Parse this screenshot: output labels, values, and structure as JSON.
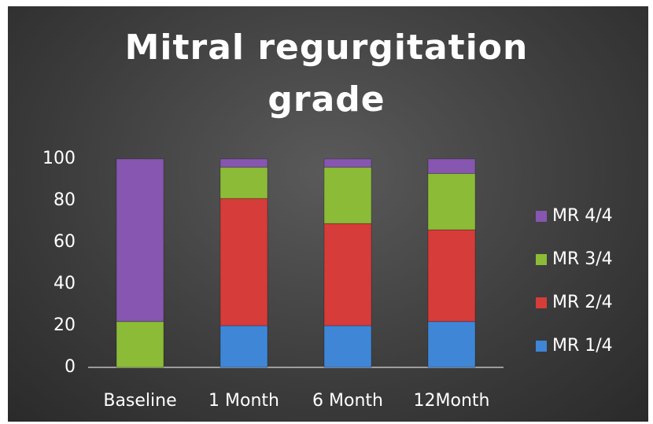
{
  "chart_data": {
    "type": "stacked_bar",
    "title": "Mitral regurgitation grade",
    "categories": [
      "Baseline",
      "1 Month",
      "6 Month",
      "12Month"
    ],
    "series": [
      {
        "name": "MR 1/4",
        "color": "#3f86d6",
        "values": [
          0,
          20,
          20,
          22
        ]
      },
      {
        "name": "MR 2/4",
        "color": "#d63c3a",
        "values": [
          0,
          61,
          49,
          44
        ]
      },
      {
        "name": "MR 3/4",
        "color": "#8cbb38",
        "values": [
          22,
          15,
          27,
          27
        ]
      },
      {
        "name": "MR 4/4",
        "color": "#8656b1",
        "values": [
          78,
          4,
          4,
          7
        ]
      }
    ],
    "ylim": [
      0,
      100
    ],
    "yticks": [
      0,
      20,
      40,
      60,
      80,
      100
    ],
    "grid": false,
    "legend": "right"
  }
}
